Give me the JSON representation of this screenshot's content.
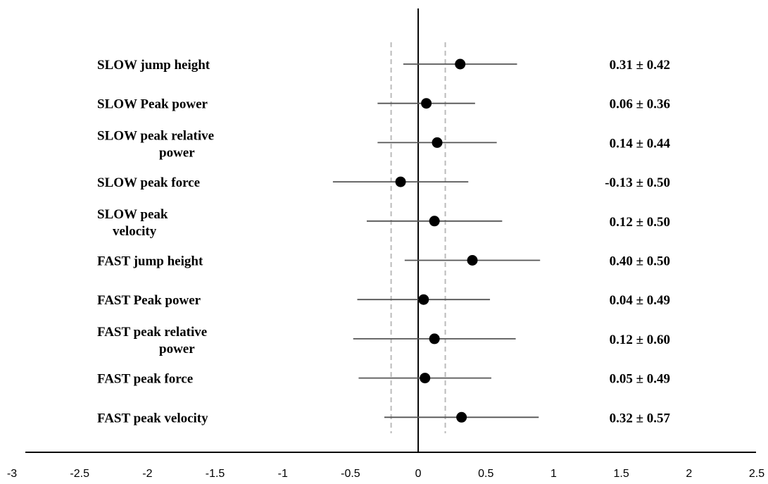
{
  "chart_data": {
    "type": "forest",
    "title": "",
    "xlabel": "",
    "ylabel": "",
    "xlim": [
      -3,
      2.5
    ],
    "xticks": [
      "-3",
      "-2.5",
      "-2",
      "-1.5",
      "-1",
      "-0.5",
      "0",
      "0.5",
      "1",
      "1.5",
      "2",
      "2.5"
    ],
    "xtick_values": [
      -3,
      -2.5,
      -2,
      -1.5,
      -1,
      -0.5,
      0,
      0.5,
      1,
      1.5,
      2,
      2.5
    ],
    "reference_line": 0,
    "threshold_lines": [
      -0.2,
      0.2
    ],
    "rows": [
      {
        "label_lines": [
          "SLOW jump height"
        ],
        "effect": 0.31,
        "ci": 0.42,
        "value_text": "0.31",
        "ci_text": "± 0.42"
      },
      {
        "label_lines": [
          "SLOW Peak power"
        ],
        "effect": 0.06,
        "ci": 0.36,
        "value_text": "0.06",
        "ci_text": "± 0.36"
      },
      {
        "label_lines": [
          "SLOW peak relative",
          "power"
        ],
        "effect": 0.14,
        "ci": 0.44,
        "value_text": "0.14",
        "ci_text": "± 0.44"
      },
      {
        "label_lines": [
          "SLOW peak force"
        ],
        "effect": -0.13,
        "ci": 0.5,
        "value_text": "-0.13",
        "ci_text": "± 0.50"
      },
      {
        "label_lines": [
          "SLOW peak",
          "velocity"
        ],
        "effect": 0.12,
        "ci": 0.5,
        "value_text": "0.12",
        "ci_text": "± 0.50"
      },
      {
        "label_lines": [
          "FAST jump height"
        ],
        "effect": 0.4,
        "ci": 0.5,
        "value_text": "0.40",
        "ci_text": "± 0.50"
      },
      {
        "label_lines": [
          "FAST Peak power"
        ],
        "effect": 0.04,
        "ci": 0.49,
        "value_text": "0.04",
        "ci_text": "± 0.49"
      },
      {
        "label_lines": [
          "FAST peak relative",
          "power"
        ],
        "effect": 0.12,
        "ci": 0.6,
        "value_text": "0.12",
        "ci_text": "± 0.60"
      },
      {
        "label_lines": [
          "FAST peak force"
        ],
        "effect": 0.05,
        "ci": 0.49,
        "value_text": "0.05",
        "ci_text": "± 0.49"
      },
      {
        "label_lines": [
          "FAST peak velocity"
        ],
        "effect": 0.32,
        "ci": 0.57,
        "value_text": "0.32",
        "ci_text": "± 0.57"
      }
    ],
    "colors": {
      "point": "#000000",
      "ci_line": "#555555",
      "threshold": "#bbbbbb",
      "axis": "#000000"
    }
  }
}
